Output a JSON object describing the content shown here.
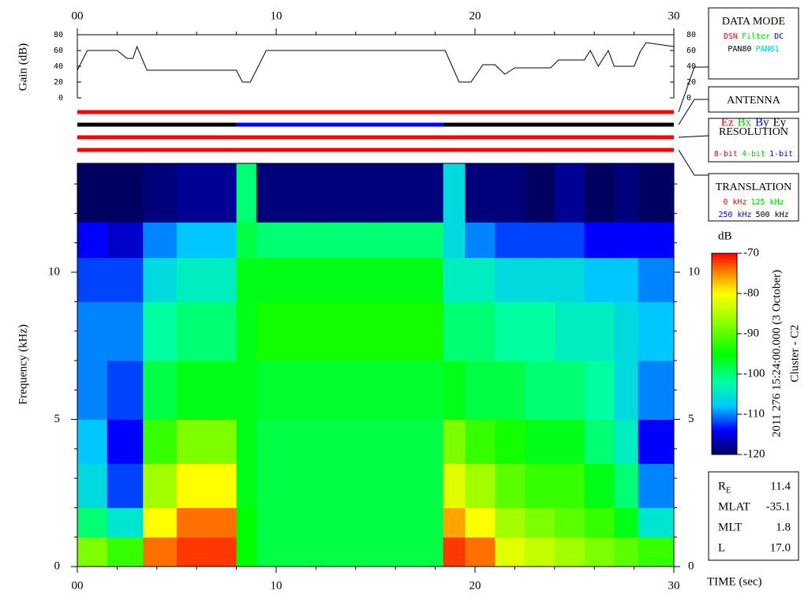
{
  "chart_data": [
    {
      "type": "line",
      "ylabel": "Gain (dB)",
      "color": "#000000",
      "x": [
        0,
        0.5,
        2,
        2.5,
        2.8,
        3,
        3.5,
        8,
        8.3,
        8.7,
        9.5,
        18.5,
        19.2,
        19.8,
        20.4,
        21,
        21.5,
        22,
        23.8,
        24.2,
        25.5,
        25.8,
        26.2,
        26.7,
        27,
        27.4,
        28,
        28.3,
        28.6,
        30
      ],
      "values": [
        35,
        60,
        60,
        50,
        50,
        65,
        35,
        35,
        20,
        20,
        60,
        60,
        20,
        20,
        42,
        42,
        30,
        38,
        38,
        48,
        48,
        60,
        40,
        60,
        40,
        40,
        40,
        58,
        70,
        65
      ],
      "xlim": [
        0,
        30
      ],
      "xticks": [
        {
          "value": 0,
          "label": "00"
        },
        10,
        20,
        30
      ],
      "xminor": [
        2,
        4,
        6,
        8,
        12,
        14,
        16,
        18,
        22,
        24,
        26,
        28
      ],
      "ylim": [
        0,
        80
      ],
      "yticks": [
        0,
        20,
        40,
        60,
        80
      ]
    },
    {
      "type": "status",
      "xlim": [
        0,
        30
      ],
      "bars": [
        [
          {
            "start": 0,
            "end": 30,
            "color": "#ff0000"
          }
        ],
        [
          {
            "start": 0,
            "end": 8,
            "color": "#000000"
          },
          {
            "start": 8,
            "end": 18.4,
            "color": "#0000ff"
          },
          {
            "start": 18.4,
            "end": 30,
            "color": "#000000"
          }
        ],
        [
          {
            "start": 0,
            "end": 30,
            "color": "#ff0000"
          }
        ],
        [
          {
            "start": 0,
            "end": 30,
            "color": "#ff0000"
          }
        ]
      ]
    },
    {
      "type": "heatmap",
      "ylabel": "Frequency (kHz)",
      "xlabel": "TIME (sec)",
      "xlim": [
        0,
        30
      ],
      "ylim": [
        0,
        13.7
      ],
      "xticks": [
        {
          "value": 0,
          "label": "00"
        },
        10,
        20,
        30
      ],
      "xminor": [
        2,
        4,
        6,
        8,
        12,
        14,
        16,
        18,
        22,
        24,
        26,
        28
      ],
      "yticks": [
        0,
        5,
        10
      ],
      "yminor": [
        1,
        2,
        3,
        4,
        6,
        7,
        8,
        9,
        11,
        12,
        13
      ],
      "x_edges": [
        0,
        1.5,
        3.3,
        5,
        6.5,
        8,
        9,
        12,
        15,
        18.4,
        19.5,
        21,
        22.5,
        24,
        25.5,
        27,
        28.2,
        30
      ],
      "y_edges": [
        0,
        1,
        2,
        3.5,
        5,
        7,
        9,
        10.5,
        11.7,
        13.7
      ],
      "values": [
        [
          -88,
          -92,
          -74,
          -72,
          -72,
          -95,
          -98,
          -98,
          -98,
          -72,
          -74,
          -82,
          -84,
          -86,
          -88,
          -90,
          -92
        ],
        [
          -100,
          -105,
          -80,
          -74,
          -74,
          -95,
          -98,
          -98,
          -98,
          -76,
          -80,
          -86,
          -88,
          -90,
          -92,
          -96,
          -105
        ],
        [
          -106,
          -112,
          -86,
          -80,
          -80,
          -96,
          -98,
          -98,
          -98,
          -82,
          -86,
          -90,
          -92,
          -92,
          -96,
          -100,
          -110
        ],
        [
          -108,
          -114,
          -92,
          -88,
          -88,
          -96,
          -98,
          -98,
          -98,
          -88,
          -92,
          -94,
          -96,
          -96,
          -100,
          -104,
          -114
        ],
        [
          -110,
          -112,
          -98,
          -96,
          -96,
          -96,
          -97,
          -97,
          -97,
          -96,
          -98,
          -98,
          -100,
          -100,
          -102,
          -106,
          -110
        ],
        [
          -110,
          -110,
          -102,
          -100,
          -100,
          -96,
          -94,
          -94,
          -94,
          -100,
          -100,
          -102,
          -102,
          -104,
          -104,
          -106,
          -108
        ],
        [
          -112,
          -112,
          -106,
          -104,
          -104,
          -96,
          -96,
          -96,
          -96,
          -104,
          -104,
          -106,
          -106,
          -106,
          -108,
          -108,
          -110
        ],
        [
          -114,
          -116,
          -110,
          -108,
          -108,
          -98,
          -100,
          -100,
          -100,
          -106,
          -110,
          -112,
          -112,
          -112,
          -114,
          -114,
          -114
        ],
        [
          -120,
          -120,
          -119,
          -118,
          -118,
          -100,
          -119,
          -119,
          -119,
          -106,
          -119,
          -119,
          -120,
          -118,
          -120,
          -119,
          -120
        ]
      ],
      "colorbar": {
        "label": "dB",
        "lim": [
          -120,
          -70
        ],
        "ticks": [
          -70,
          -80,
          -90,
          -100,
          -110,
          -120
        ],
        "stops": [
          {
            "value": -120,
            "color": "#000060"
          },
          {
            "value": -114,
            "color": "#0000ff"
          },
          {
            "value": -108,
            "color": "#00c8ff"
          },
          {
            "value": -102,
            "color": "#00ffa0"
          },
          {
            "value": -95,
            "color": "#00ff00"
          },
          {
            "value": -85,
            "color": "#b4ff00"
          },
          {
            "value": -80,
            "color": "#ffff00"
          },
          {
            "value": -75,
            "color": "#ff8c00"
          },
          {
            "value": -70,
            "color": "#ff0000"
          }
        ]
      }
    }
  ],
  "legends": [
    {
      "title": "DATA MODE",
      "rows": [
        [
          {
            "text": "DSN",
            "color": "#ff0000"
          },
          {
            "text": "Filter",
            "color": "#00dd00"
          },
          {
            "text": "DC",
            "color": "#0000ff"
          }
        ],
        [
          {
            "text": "PAN80",
            "color": "#000000"
          },
          {
            "text": "PAN81",
            "color": "#00cccc"
          }
        ]
      ]
    },
    {
      "title": "ANTENNA",
      "rows": [
        [
          {
            "text": "Ez",
            "color": "#ff0000"
          },
          {
            "text": "Bx",
            "color": "#00cc00"
          },
          {
            "text": "By",
            "color": "#0000ff"
          },
          {
            "text": "Ey",
            "color": "#000000"
          }
        ]
      ]
    },
    {
      "title": "RESOLUTION",
      "rows": [
        [
          {
            "text": "8-bit",
            "color": "#ff0000"
          },
          {
            "text": "4-bit",
            "color": "#00cc00"
          },
          {
            "text": "1-bit",
            "color": "#0000ff"
          }
        ]
      ]
    },
    {
      "title": "TRANSLATION",
      "rows": [
        [
          {
            "text": "0 kHz",
            "color": "#ff0000"
          },
          {
            "text": "125 kHz",
            "color": "#00cc00"
          }
        ],
        [
          {
            "text": "250 kHz",
            "color": "#0000ff"
          },
          {
            "text": "500 kHz",
            "color": "#000000"
          }
        ]
      ]
    }
  ],
  "caption": [
    "2011 276 15:24:00.000 (3 October)",
    "Cluster - C2"
  ],
  "ephemeris": [
    {
      "label": "R",
      "sub": "E",
      "value": "11.4"
    },
    {
      "label": "MLAT",
      "value": "-35.1"
    },
    {
      "label": "MLT",
      "value": "1.8"
    },
    {
      "label": "L",
      "value": "17.0"
    }
  ]
}
